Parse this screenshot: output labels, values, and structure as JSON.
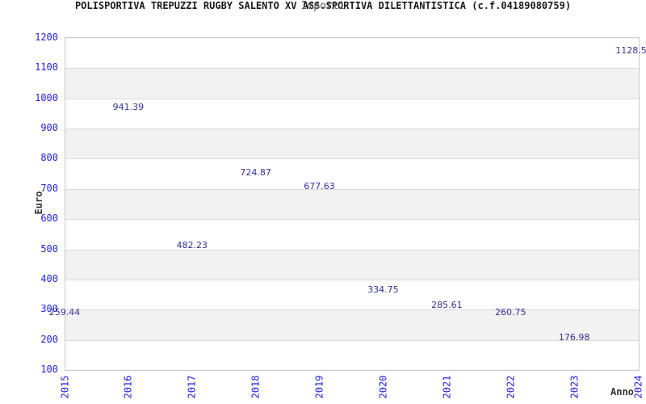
{
  "header": {
    "title": "POLISPORTIVA TREPUZZI RUGBY SALENTO XV ASS.SPORTIVA DILETTANTISTICA (c.f.04189080759)",
    "subtitle": "Importi"
  },
  "chart_data": {
    "type": "line",
    "x": [
      "2015",
      "2016",
      "2017",
      "2018",
      "2019",
      "2020",
      "2021",
      "2022",
      "2023",
      "2024"
    ],
    "values": [
      259.44,
      941.39,
      482.23,
      724.87,
      677.63,
      334.75,
      285.61,
      260.75,
      176.98,
      1128.5
    ],
    "point_labels": [
      "259.44",
      "941.39",
      "482.23",
      "724.87",
      "677.63",
      "334.75",
      "285.61",
      "260.75",
      "176.98",
      "1128.5"
    ],
    "title": "Importi",
    "xlabel": "Anno",
    "ylabel": "Euro",
    "ylim": [
      100,
      1200
    ],
    "ytick_step": 100,
    "grid": true,
    "legend": "none",
    "colors": {
      "line": "#6fa3e0",
      "tick_label": "#2222e0",
      "point_label": "#333399",
      "band_fill": "#f2f2f2",
      "gridline": "#d9d9d9",
      "plot_border": "#c9c9c9",
      "title_text": "#1a1a1a",
      "subtitle_text": "#595959",
      "axis_title_text": "#333333"
    }
  }
}
